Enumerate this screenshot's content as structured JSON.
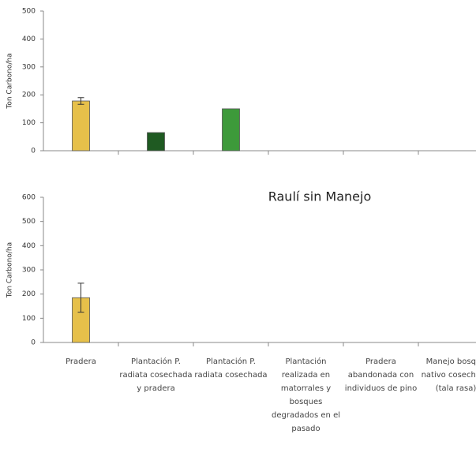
{
  "chart_data": [
    {
      "type": "bar",
      "y_label": "Ton Carbono/ha",
      "values": [
        178,
        65,
        150,
        null,
        null,
        null
      ],
      "errors": [
        12,
        null,
        null,
        null,
        null,
        null
      ],
      "colors": [
        "#e6c04a",
        "#1f5a22",
        "#3d9a3a",
        null,
        null,
        null
      ],
      "ylim": [
        0,
        500
      ],
      "yticks": [
        0,
        100,
        200,
        300,
        400,
        500
      ]
    },
    {
      "type": "bar",
      "title": "Raulí sin Manejo",
      "y_label": "Ton Carbono/ha",
      "categories": [
        "Pradera",
        "Plantación P. radiata cosechada y pradera",
        "Plantación P. radiata cosechada",
        "Plantación realizada en matorrales y bosques degradados en el pasado",
        "Pradera abandonada con individuos de pino",
        "Manejo bosque nativo cosechado (tala rasa)"
      ],
      "values": [
        185,
        null,
        null,
        null,
        null,
        null
      ],
      "errors": [
        60,
        null,
        null,
        null,
        null,
        null
      ],
      "colors": [
        "#e6c04a",
        null,
        null,
        null,
        null,
        null
      ],
      "ylim": [
        0,
        600
      ],
      "yticks": [
        0,
        100,
        200,
        300,
        400,
        500,
        600
      ]
    }
  ]
}
